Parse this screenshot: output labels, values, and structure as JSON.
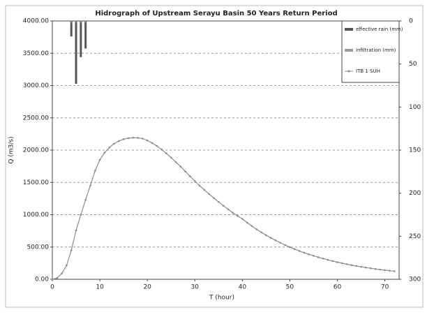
{
  "chart_data": {
    "type": "hydrograph",
    "title": "Hidrograph of Upstream Serayu Basin 50 Years Return Period",
    "x_label": "T (hour)",
    "y_label": "Q (m3/s)",
    "xlim": [
      0,
      73
    ],
    "xticks": [
      0,
      10,
      20,
      30,
      40,
      50,
      60,
      70
    ],
    "ylim": [
      0,
      4000
    ],
    "yticks": [
      {
        "value": 0,
        "label": "0.00"
      },
      {
        "value": 500,
        "label": "500.00"
      },
      {
        "value": 1000,
        "label": "1000.00"
      },
      {
        "value": 1500,
        "label": "1500.00"
      },
      {
        "value": 2000,
        "label": "2000.00"
      },
      {
        "value": 2500,
        "label": "2500.00"
      },
      {
        "value": 3000,
        "label": "3000.00"
      },
      {
        "value": 3500,
        "label": "3500.00"
      },
      {
        "value": 4000,
        "label": "4000.00"
      }
    ],
    "y2lim": [
      0,
      300
    ],
    "y2ticks": [
      0,
      50,
      100,
      150,
      200,
      250,
      300
    ],
    "y2_inverted": true,
    "grid": true,
    "legend": "top-right",
    "series": [
      {
        "name": "effective rain (mm)",
        "color": "#555555",
        "kind": "bar",
        "axis": "y2",
        "x": [
          4,
          5,
          6,
          7
        ],
        "values": [
          18,
          73,
          42,
          32
        ]
      },
      {
        "name": "infiltration (mm)",
        "color": "#9a9a9a",
        "kind": "bar",
        "axis": "y2",
        "x": [
          4,
          5,
          6,
          7
        ],
        "values": [
          2,
          2,
          2,
          2
        ]
      },
      {
        "name": "ITB 1 SUH",
        "color": "#8a8a8a",
        "kind": "line",
        "x": [
          0,
          1,
          2,
          3,
          4,
          5,
          6,
          7,
          8,
          9,
          10,
          11,
          12,
          13,
          14,
          15,
          16,
          17,
          18,
          19,
          20,
          21,
          22,
          23,
          24,
          25,
          26,
          27,
          28,
          29,
          30,
          31,
          32,
          33,
          34,
          35,
          36,
          37,
          38,
          39,
          40,
          41,
          42,
          43,
          44,
          45,
          46,
          47,
          48,
          49,
          50,
          51,
          52,
          53,
          54,
          55,
          56,
          57,
          58,
          59,
          60,
          61,
          62,
          63,
          64,
          65,
          66,
          67,
          68,
          69,
          70,
          71,
          72
        ],
        "values": [
          0,
          20,
          90,
          216,
          450,
          757,
          1000,
          1230,
          1450,
          1680,
          1850,
          1960,
          2040,
          2100,
          2140,
          2170,
          2185,
          2192,
          2190,
          2178,
          2150,
          2110,
          2065,
          2010,
          1950,
          1885,
          1815,
          1745,
          1670,
          1595,
          1520,
          1450,
          1385,
          1320,
          1258,
          1198,
          1140,
          1085,
          1030,
          980,
          935,
          878,
          824,
          774,
          727,
          683,
          641,
          602,
          565,
          531,
          498,
          468,
          439,
          412,
          387,
          364,
          341,
          321,
          301,
          283,
          265,
          249,
          234,
          219,
          206,
          193,
          182,
          171,
          160,
          150,
          141,
          133,
          125
        ]
      }
    ]
  }
}
